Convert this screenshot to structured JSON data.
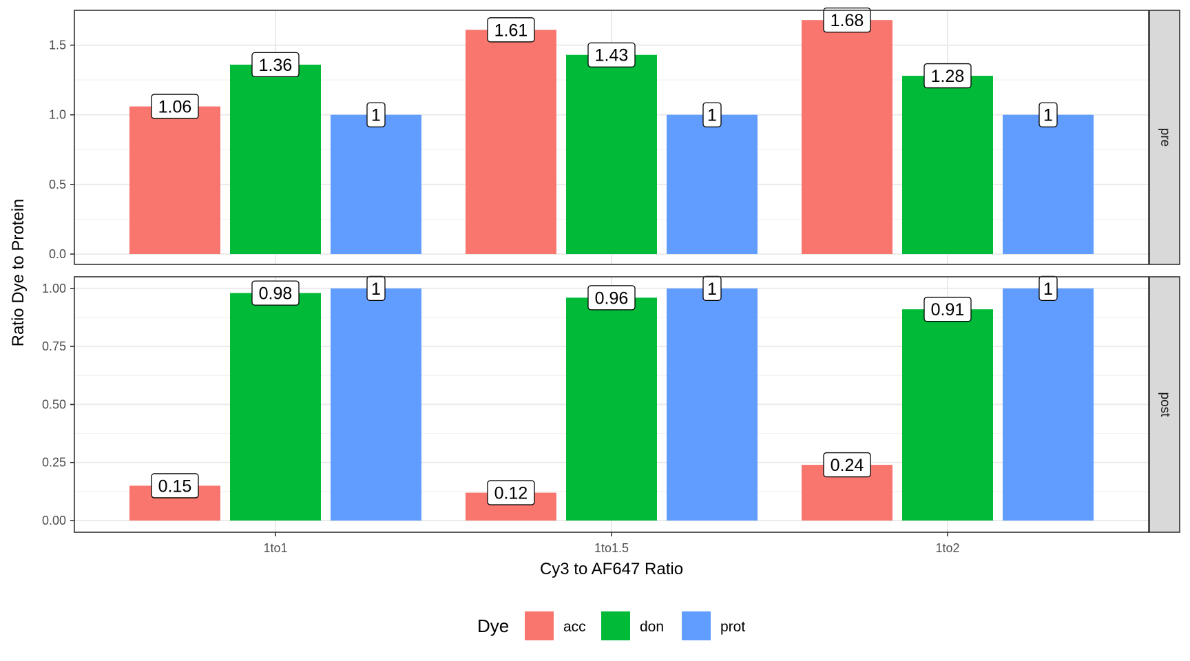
{
  "chart_data": {
    "type": "bar",
    "layout": "faceted-rows",
    "xlabel": "Cy3 to AF647 Ratio",
    "ylabel": "Ratio Dye to Protein",
    "categories": [
      "1to1",
      "1to1.5",
      "1to2"
    ],
    "legend": {
      "title": "Dye",
      "position": "bottom",
      "entries": [
        {
          "name": "acc",
          "color": "#F8766D"
        },
        {
          "name": "don",
          "color": "#00BA38"
        },
        {
          "name": "prot",
          "color": "#619CFF"
        }
      ]
    },
    "grid": true,
    "facets": [
      {
        "label": "pre",
        "ylim": [
          0,
          1.75
        ],
        "yticks": [
          0.0,
          0.5,
          1.0,
          1.5
        ],
        "ytick_labels": [
          "0.0",
          "0.5",
          "1.0",
          "1.5"
        ],
        "series": [
          {
            "name": "acc",
            "values": [
              1.06,
              1.61,
              1.68
            ],
            "labels": [
              "1.06",
              "1.61",
              "1.68"
            ]
          },
          {
            "name": "don",
            "values": [
              1.36,
              1.43,
              1.28
            ],
            "labels": [
              "1.36",
              "1.43",
              "1.28"
            ]
          },
          {
            "name": "prot",
            "values": [
              1,
              1,
              1
            ],
            "labels": [
              "1",
              "1",
              "1"
            ]
          }
        ]
      },
      {
        "label": "post",
        "ylim": [
          0,
          1.05
        ],
        "yticks": [
          0.0,
          0.25,
          0.5,
          0.75,
          1.0
        ],
        "ytick_labels": [
          "0.00",
          "0.25",
          "0.50",
          "0.75",
          "1.00"
        ],
        "series": [
          {
            "name": "acc",
            "values": [
              0.15,
              0.12,
              0.24
            ],
            "labels": [
              "0.15",
              "0.12",
              "0.24"
            ]
          },
          {
            "name": "don",
            "values": [
              0.98,
              0.96,
              0.91
            ],
            "labels": [
              "0.98",
              "0.96",
              "0.91"
            ]
          },
          {
            "name": "prot",
            "values": [
              1,
              1,
              1
            ],
            "labels": [
              "1",
              "1",
              "1"
            ]
          }
        ]
      }
    ]
  }
}
